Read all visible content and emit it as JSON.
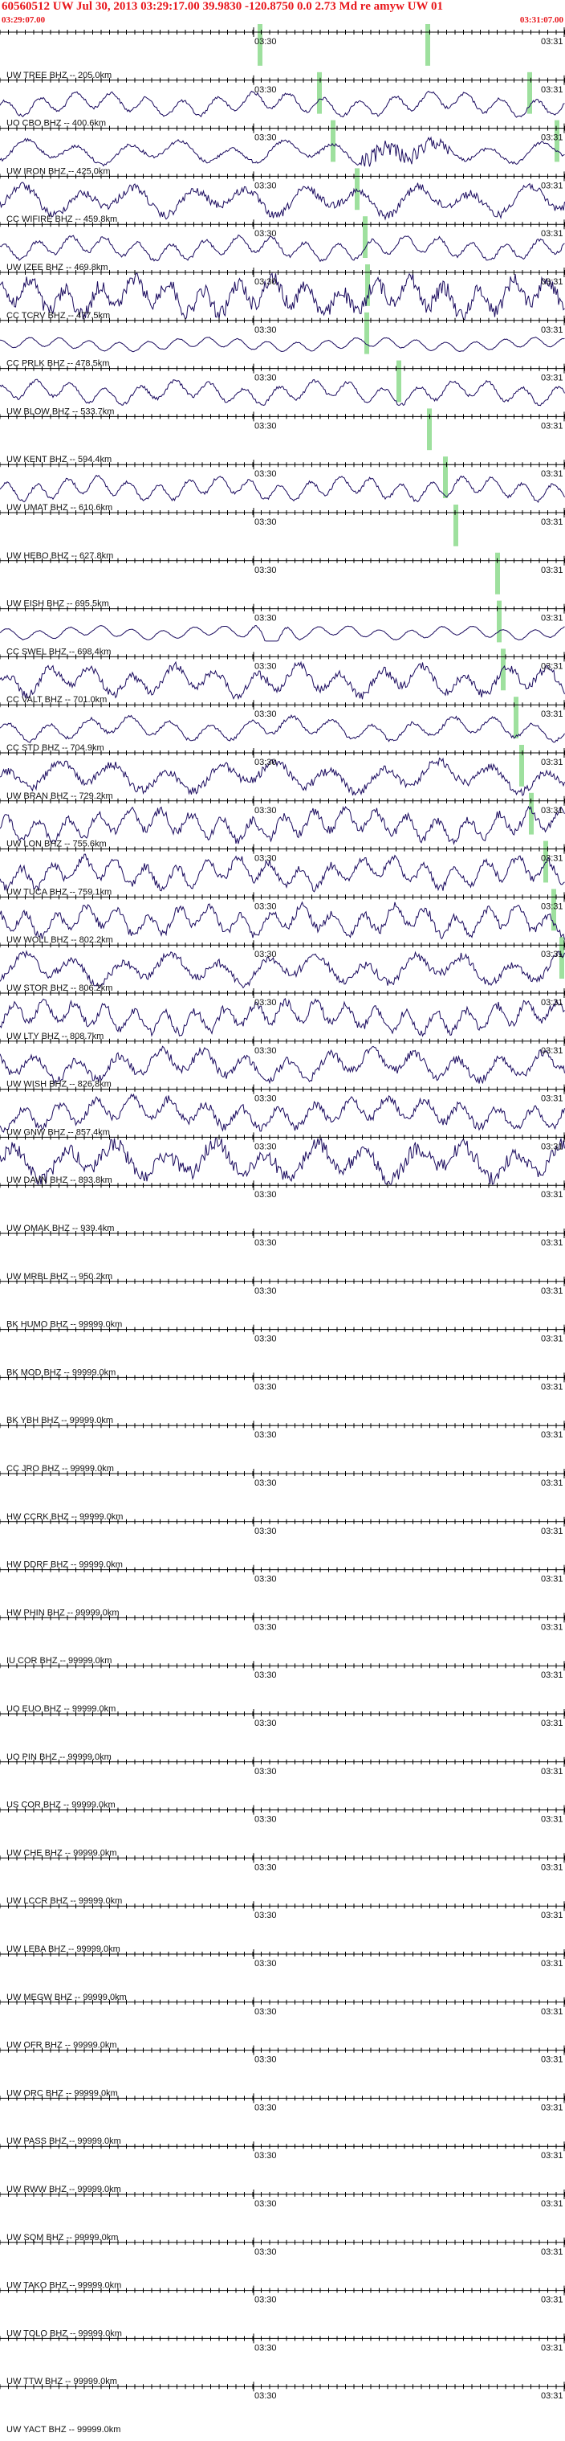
{
  "header": {
    "title": "60560512 UW Jul 30, 2013 03:29:17.00    39.9830  -120.8750   0.0  2.73  Md re amyw UW 01",
    "start_time": "03:29:07.00",
    "end_time": "03:31:07.00"
  },
  "axis": {
    "tick_mid": "03:30",
    "tick_end": "03:31"
  },
  "colors": {
    "header_text": "#e8161b",
    "trace": "#1a0a5e",
    "pick_marker": "#9ee09e",
    "axis": "#000000"
  },
  "chart_data": {
    "type": "line",
    "title": "60560512 UW Jul 30, 2013 03:29:17.00    39.9830  -120.8750   0.0  2.73  Md re amyw UW 01",
    "xlabel": "",
    "ylabel": "",
    "x_range": [
      "03:29:07.00",
      "03:31:07.00"
    ],
    "x_ticks": [
      "03:30",
      "03:31"
    ],
    "grid": false,
    "legend": "none",
    "series": [
      {
        "name": "UW TREE BHZ -- 205.0km",
        "activity": 0
      },
      {
        "name": "UO CBO BHZ -- 400.6km",
        "activity": 2
      },
      {
        "name": "UW IRON BHZ -- 425.0km",
        "activity": 2
      },
      {
        "name": "CC WIFIRE BHZ -- 459.8km",
        "activity": 3
      },
      {
        "name": "UW IZEE BHZ -- 469.8km",
        "activity": 2
      },
      {
        "name": "CC TCRV BHZ -- 477.5km",
        "activity": 4
      },
      {
        "name": "CC PRLK BHZ -- 478.5km",
        "activity": 1
      },
      {
        "name": "UW BLOW BHZ -- 533.7km",
        "activity": 2
      },
      {
        "name": "UW KENT BHZ -- 594.4km",
        "activity": 0
      },
      {
        "name": "UW UMAT BHZ -- 610.6km",
        "activity": 2
      },
      {
        "name": "UW HEBO BHZ -- 627.8km",
        "activity": 0
      },
      {
        "name": "UW EISH BHZ -- 695.5km",
        "activity": 0
      },
      {
        "name": "CC SWEL BHZ -- 698.4km",
        "activity": 1
      },
      {
        "name": "CC VALT BHZ -- 701.0km",
        "activity": 3
      },
      {
        "name": "CC STD BHZ -- 704.9km",
        "activity": 2
      },
      {
        "name": "UW BRAN BHZ -- 729.2km",
        "activity": 3
      },
      {
        "name": "UW LON BHZ -- 755.6km",
        "activity": 3
      },
      {
        "name": "UW TUCA BHZ -- 759.1km",
        "activity": 3
      },
      {
        "name": "UW WOLL BHZ -- 802.2km",
        "activity": 3
      },
      {
        "name": "UW STOR BHZ -- 806.2km",
        "activity": 3
      },
      {
        "name": "UW LTY BHZ -- 808.7km",
        "activity": 3
      },
      {
        "name": "UW WISH BHZ -- 826.8km",
        "activity": 3
      },
      {
        "name": "UW GNW BHZ -- 857.4km",
        "activity": 3
      },
      {
        "name": "UW DAVN BHZ -- 893.8km",
        "activity": 4
      },
      {
        "name": "UW OMAK BHZ -- 939.4km",
        "activity": 0
      },
      {
        "name": "UW MRBL BHZ -- 950.2km",
        "activity": 0
      },
      {
        "name": "BK HUMO BHZ -- 99999.0km",
        "activity": 0
      },
      {
        "name": "BK MOD BHZ -- 99999.0km",
        "activity": 0
      },
      {
        "name": "BK YBH BHZ -- 99999.0km",
        "activity": 0
      },
      {
        "name": "CC JRO BHZ -- 99999.0km",
        "activity": 0
      },
      {
        "name": "HW CCRK BHZ -- 99999.0km",
        "activity": 0
      },
      {
        "name": "HW DDRF BHZ -- 99999.0km",
        "activity": 0
      },
      {
        "name": "HW PHIN BHZ -- 99999.0km",
        "activity": 0
      },
      {
        "name": "IU COR BHZ -- 99999.0km",
        "activity": 0
      },
      {
        "name": "UO EUO BHZ -- 99999.0km",
        "activity": 0
      },
      {
        "name": "UO PIN BHZ -- 99999.0km",
        "activity": 0
      },
      {
        "name": "US COR BHZ -- 99999.0km",
        "activity": 0
      },
      {
        "name": "UW CHE BHZ -- 99999.0km",
        "activity": 0
      },
      {
        "name": "UW LCCR BHZ -- 99999.0km",
        "activity": 0
      },
      {
        "name": "UW LEBA BHZ -- 99999.0km",
        "activity": 0
      },
      {
        "name": "UW MEGW BHZ -- 99999.0km",
        "activity": 0
      },
      {
        "name": "UW OFR BHZ -- 99999.0km",
        "activity": 0
      },
      {
        "name": "UW ORC BHZ -- 99999.0km",
        "activity": 0
      },
      {
        "name": "UW PASS BHZ -- 99999.0km",
        "activity": 0
      },
      {
        "name": "UW RWW BHZ -- 99999.0km",
        "activity": 0
      },
      {
        "name": "UW SQM BHZ -- 99999.0km",
        "activity": 0
      },
      {
        "name": "UW TAKO BHZ -- 99999.0km",
        "activity": 0
      },
      {
        "name": "UW TOLO BHZ -- 99999.0km",
        "activity": 0
      },
      {
        "name": "UW TTW BHZ -- 99999.0km",
        "activity": 0
      },
      {
        "name": "UW YACT BHZ -- 99999.0km",
        "activity": 0
      }
    ]
  }
}
